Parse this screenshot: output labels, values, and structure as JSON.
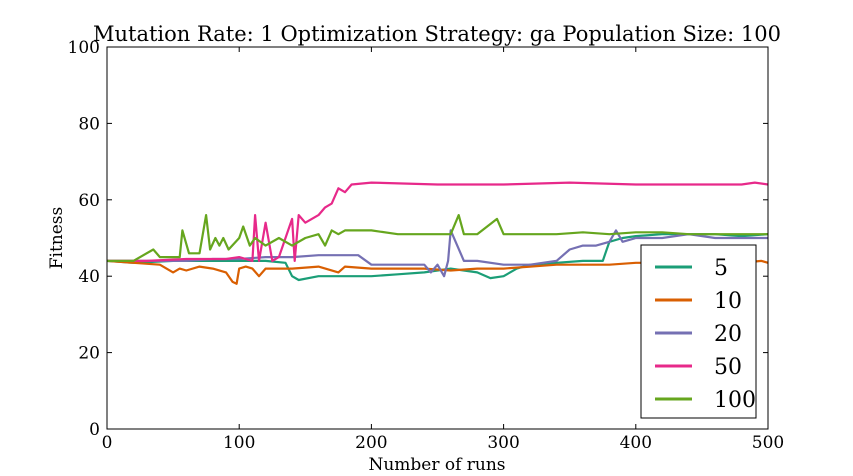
{
  "chart_data": {
    "type": "line",
    "title": "Mutation Rate: 1 Optimization Strategy: ga Population Size: 100",
    "xlabel": "Number of runs",
    "ylabel": "Fitness",
    "xlim": [
      0,
      500
    ],
    "ylim": [
      0,
      100
    ],
    "xticks": [
      0,
      100,
      200,
      300,
      400,
      500
    ],
    "yticks": [
      0,
      20,
      40,
      60,
      80,
      100
    ],
    "grid": false,
    "legend_position": "lower-right",
    "series": [
      {
        "name": "5",
        "color": "#1b9e77",
        "x": [
          0,
          20,
          50,
          80,
          100,
          120,
          135,
          140,
          145,
          160,
          180,
          200,
          220,
          240,
          260,
          280,
          290,
          300,
          310,
          320,
          330,
          340,
          360,
          375,
          378,
          380,
          390,
          400,
          420,
          440,
          460,
          480,
          500
        ],
        "y": [
          44,
          43.5,
          44,
          44,
          44,
          44,
          43.5,
          40,
          39,
          40,
          40,
          40,
          40.5,
          41,
          42,
          41,
          39.5,
          40,
          42,
          43,
          43,
          43.5,
          44,
          44,
          47,
          49,
          50,
          50.5,
          51,
          51,
          51,
          50.5,
          51
        ]
      },
      {
        "name": "10",
        "color": "#d95f02",
        "x": [
          0,
          20,
          40,
          50,
          55,
          60,
          70,
          80,
          90,
          95,
          98,
          100,
          105,
          110,
          115,
          120,
          140,
          160,
          175,
          180,
          200,
          220,
          240,
          260,
          280,
          300,
          320,
          340,
          360,
          380,
          400,
          420,
          440,
          460,
          480,
          495,
          500
        ],
        "y": [
          44,
          43.5,
          43,
          41,
          42,
          41.5,
          42.5,
          42,
          41,
          38.5,
          38,
          42,
          42.5,
          42,
          40,
          42,
          42,
          42.5,
          41,
          42.5,
          42,
          42,
          42,
          41.5,
          42,
          42,
          42.5,
          43,
          43,
          43,
          43.5,
          43.5,
          43.5,
          43.5,
          43.5,
          44,
          43.5
        ]
      },
      {
        "name": "20",
        "color": "#7570b3",
        "x": [
          0,
          20,
          40,
          60,
          80,
          100,
          120,
          140,
          160,
          170,
          190,
          200,
          220,
          240,
          245,
          250,
          255,
          258,
          260,
          270,
          280,
          300,
          320,
          340,
          350,
          360,
          370,
          380,
          385,
          390,
          400,
          420,
          440,
          460,
          480,
          500
        ],
        "y": [
          44,
          44,
          44,
          44,
          44.5,
          44.5,
          45,
          45,
          45.5,
          45.5,
          45.5,
          43,
          43,
          43,
          41,
          43,
          40,
          44,
          52,
          44,
          44,
          43,
          43,
          44,
          47,
          48,
          48,
          49,
          52,
          49,
          50,
          50,
          51,
          50,
          50,
          50
        ]
      },
      {
        "name": "50",
        "color": "#e7298a",
        "x": [
          0,
          30,
          60,
          90,
          100,
          110,
          112,
          115,
          120,
          125,
          130,
          140,
          142,
          145,
          150,
          160,
          165,
          170,
          175,
          180,
          185,
          200,
          250,
          300,
          350,
          400,
          450,
          480,
          490,
          500
        ],
        "y": [
          44,
          44,
          44.5,
          44.5,
          45,
          44,
          56,
          44,
          54,
          44,
          45,
          55,
          44,
          56,
          54,
          56,
          58,
          59,
          63,
          62,
          64,
          64.5,
          64,
          64,
          64.5,
          64,
          64,
          64,
          64.5,
          64
        ]
      },
      {
        "name": "100",
        "color": "#66a61e",
        "x": [
          0,
          20,
          35,
          40,
          55,
          57,
          62,
          70,
          75,
          78,
          82,
          85,
          88,
          92,
          100,
          103,
          108,
          112,
          120,
          130,
          140,
          150,
          160,
          165,
          170,
          175,
          180,
          200,
          220,
          240,
          260,
          266,
          270,
          280,
          295,
          300,
          320,
          340,
          360,
          380,
          400,
          420,
          440,
          460,
          480,
          500
        ],
        "y": [
          44,
          44,
          47,
          45,
          45,
          52,
          46,
          46,
          56,
          47,
          50,
          48,
          50,
          47,
          50,
          53,
          48,
          50,
          48,
          50,
          48,
          50,
          51,
          48,
          52,
          51,
          52,
          52,
          51,
          51,
          51,
          56,
          51,
          51,
          55,
          51,
          51,
          51,
          51.5,
          51,
          51.5,
          51.5,
          51,
          51,
          51,
          51
        ]
      }
    ]
  }
}
